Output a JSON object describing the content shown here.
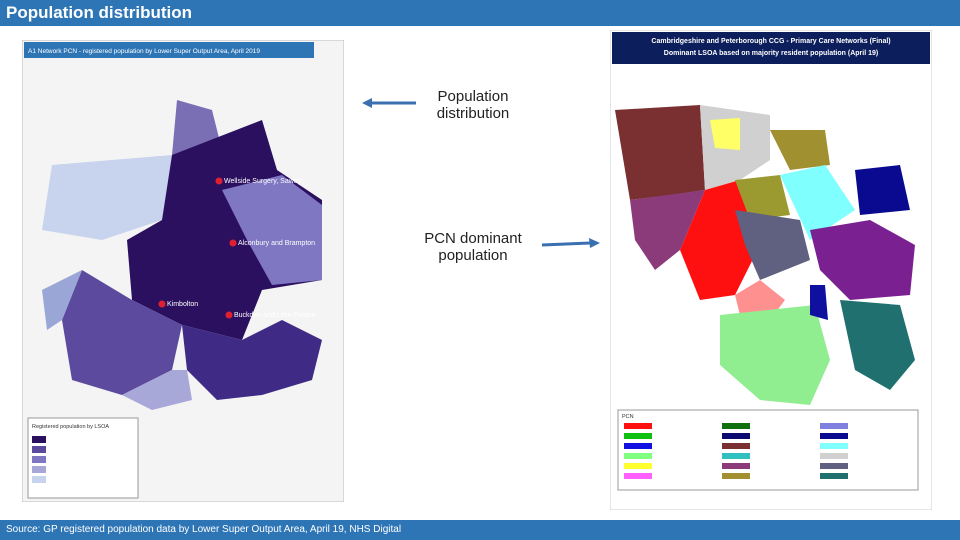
{
  "header": {
    "title": "Population distribution"
  },
  "callouts": [
    "Population distribution",
    "PCN dominant population"
  ],
  "left_map": {
    "title": "A1 Network PCN - registered population by Lower Super Output Area, April 2019",
    "places": [
      "Wellside Surgery, Sawtry",
      "Alconbury and Brampton",
      "Kimbolton",
      "Buckden and Little Paxton"
    ],
    "legend_title": "Registered population by LSOA"
  },
  "right_map": {
    "title": "Cambridgeshire and Peterborough CCG - Primary Care Networks (Final)",
    "subtitle": "Dominant LSOA based on majority resident population (April 19)",
    "legend_title": "PCN"
  },
  "footer": {
    "source": "Source: GP registered population data by Lower Super Output Area, April 19, NHS Digital"
  }
}
